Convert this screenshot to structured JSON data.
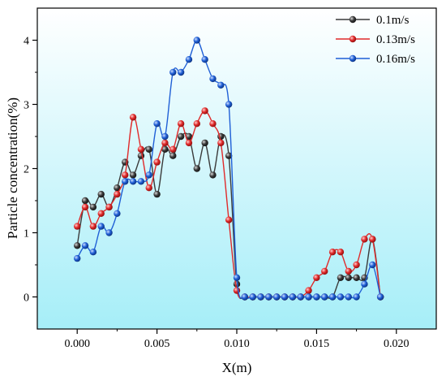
{
  "chart_data": {
    "type": "line",
    "xlabel": "X(m)",
    "ylabel": "Particle concentration(%)",
    "xlim": [
      -0.0025,
      0.0225
    ],
    "ylim": [
      -0.5,
      4.5
    ],
    "x_ticks": [
      0.0,
      0.005,
      0.01,
      0.015,
      0.02
    ],
    "x_tick_labels": [
      "0.000",
      "0.005",
      "0.010",
      "0.015",
      "0.020"
    ],
    "y_ticks": [
      0,
      1,
      2,
      3,
      4
    ],
    "y_tick_labels": [
      "0",
      "1",
      "2",
      "3",
      "4"
    ],
    "legend_position": "top-right",
    "series": [
      {
        "name": "0.1m/s",
        "color": "#3a3a3a",
        "points": [
          [
            0.0,
            0.8
          ],
          [
            0.0005,
            1.5
          ],
          [
            0.001,
            1.4
          ],
          [
            0.0015,
            1.6
          ],
          [
            0.002,
            1.4
          ],
          [
            0.0025,
            1.7
          ],
          [
            0.003,
            2.1
          ],
          [
            0.0035,
            1.9
          ],
          [
            0.004,
            2.2
          ],
          [
            0.0045,
            2.3
          ],
          [
            0.005,
            1.6
          ],
          [
            0.0055,
            2.3
          ],
          [
            0.006,
            2.2
          ],
          [
            0.0065,
            2.5
          ],
          [
            0.007,
            2.5
          ],
          [
            0.0075,
            2.0
          ],
          [
            0.008,
            2.4
          ],
          [
            0.0085,
            1.9
          ],
          [
            0.009,
            2.5
          ],
          [
            0.0095,
            2.2
          ],
          [
            0.01,
            0.2
          ],
          [
            0.0105,
            0.0
          ],
          [
            0.011,
            0.0
          ],
          [
            0.0115,
            0.0
          ],
          [
            0.012,
            0.0
          ],
          [
            0.0125,
            0.0
          ],
          [
            0.013,
            0.0
          ],
          [
            0.0135,
            0.0
          ],
          [
            0.014,
            0.0
          ],
          [
            0.0145,
            0.0
          ],
          [
            0.015,
            0.0
          ],
          [
            0.0155,
            0.0
          ],
          [
            0.016,
            0.0
          ],
          [
            0.0165,
            0.3
          ],
          [
            0.017,
            0.3
          ],
          [
            0.0175,
            0.3
          ],
          [
            0.018,
            0.3
          ],
          [
            0.0185,
            0.9
          ],
          [
            0.019,
            0.0
          ]
        ]
      },
      {
        "name": "0.13m/s",
        "color": "#e02a2a",
        "points": [
          [
            0.0,
            1.1
          ],
          [
            0.0005,
            1.4
          ],
          [
            0.001,
            1.1
          ],
          [
            0.0015,
            1.3
          ],
          [
            0.002,
            1.4
          ],
          [
            0.0025,
            1.6
          ],
          [
            0.003,
            1.9
          ],
          [
            0.0035,
            2.8
          ],
          [
            0.004,
            2.3
          ],
          [
            0.0045,
            1.7
          ],
          [
            0.005,
            2.1
          ],
          [
            0.0055,
            2.4
          ],
          [
            0.006,
            2.3
          ],
          [
            0.0065,
            2.7
          ],
          [
            0.007,
            2.4
          ],
          [
            0.0075,
            2.7
          ],
          [
            0.008,
            2.9
          ],
          [
            0.0085,
            2.7
          ],
          [
            0.009,
            2.4
          ],
          [
            0.0095,
            1.2
          ],
          [
            0.01,
            0.1
          ],
          [
            0.0105,
            0.0
          ],
          [
            0.011,
            0.0
          ],
          [
            0.0115,
            0.0
          ],
          [
            0.012,
            0.0
          ],
          [
            0.0125,
            0.0
          ],
          [
            0.013,
            0.0
          ],
          [
            0.0135,
            0.0
          ],
          [
            0.014,
            0.0
          ],
          [
            0.0145,
            0.1
          ],
          [
            0.015,
            0.3
          ],
          [
            0.0155,
            0.4
          ],
          [
            0.016,
            0.7
          ],
          [
            0.0165,
            0.7
          ],
          [
            0.017,
            0.4
          ],
          [
            0.0175,
            0.5
          ],
          [
            0.018,
            0.9
          ],
          [
            0.0185,
            0.9
          ],
          [
            0.019,
            0.0
          ]
        ]
      },
      {
        "name": "0.16m/s",
        "color": "#1f5fd6",
        "points": [
          [
            0.0,
            0.6
          ],
          [
            0.0005,
            0.8
          ],
          [
            0.001,
            0.7
          ],
          [
            0.0015,
            1.1
          ],
          [
            0.002,
            1.0
          ],
          [
            0.0025,
            1.3
          ],
          [
            0.003,
            1.8
          ],
          [
            0.0035,
            1.8
          ],
          [
            0.004,
            1.8
          ],
          [
            0.0045,
            1.9
          ],
          [
            0.005,
            2.7
          ],
          [
            0.0055,
            2.5
          ],
          [
            0.006,
            3.5
          ],
          [
            0.0065,
            3.5
          ],
          [
            0.007,
            3.7
          ],
          [
            0.0075,
            4.0
          ],
          [
            0.008,
            3.7
          ],
          [
            0.0085,
            3.4
          ],
          [
            0.009,
            3.3
          ],
          [
            0.0095,
            3.0
          ],
          [
            0.01,
            0.3
          ],
          [
            0.0105,
            0.0
          ],
          [
            0.011,
            0.0
          ],
          [
            0.0115,
            0.0
          ],
          [
            0.012,
            0.0
          ],
          [
            0.0125,
            0.0
          ],
          [
            0.013,
            0.0
          ],
          [
            0.0135,
            0.0
          ],
          [
            0.014,
            0.0
          ],
          [
            0.0145,
            0.0
          ],
          [
            0.015,
            0.0
          ],
          [
            0.0155,
            0.0
          ],
          [
            0.016,
            0.0
          ],
          [
            0.0165,
            0.0
          ],
          [
            0.017,
            0.0
          ],
          [
            0.0175,
            0.0
          ],
          [
            0.018,
            0.2
          ],
          [
            0.0185,
            0.5
          ],
          [
            0.019,
            0.0
          ]
        ]
      }
    ]
  }
}
